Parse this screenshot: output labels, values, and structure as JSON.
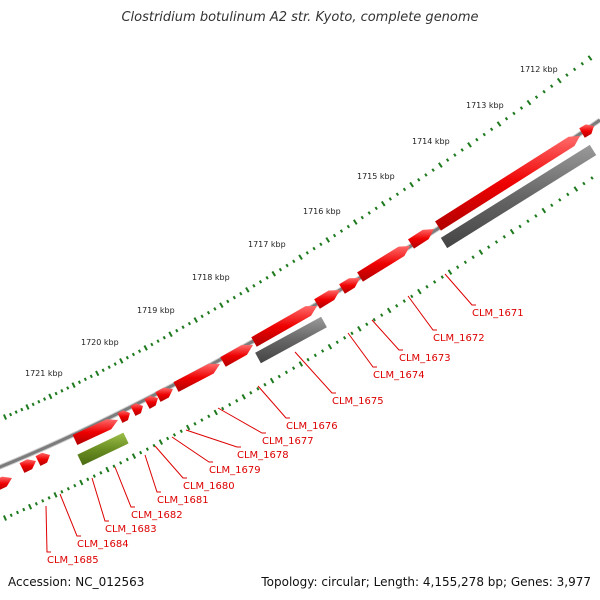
{
  "title": "Clostridium botulinum A2 str. Kyoto, complete genome",
  "scale_labels": [
    "1712 kbp",
    "1713 kbp",
    "1714 kbp",
    "1715 kbp",
    "1716 kbp",
    "1717 kbp",
    "1718 kbp",
    "1719 kbp",
    "1720 kbp",
    "1721 kbp"
  ],
  "gene_labels": [
    "CLM_1671",
    "CLM_1672",
    "CLM_1673",
    "CLM_1674",
    "CLM_1675",
    "CLM_1676",
    "CLM_1677",
    "CLM_1678",
    "CLM_1679",
    "CLM_1680",
    "CLM_1681",
    "CLM_1682",
    "CLM_1683",
    "CLM_1684",
    "CLM_1685"
  ],
  "footer": {
    "accession": "Accession: NC_012563",
    "stats": "Topology: circular; Length: 4,155,278 bp; Genes: 3,977"
  },
  "colors": {
    "forward_gene": "#ee0000",
    "reverse_gene_gray": "#666666",
    "reverse_gene_green": "#6b8e23",
    "backbone": "#888888",
    "scale_dots": "#1e7a1e",
    "label": "#dd0000"
  }
}
